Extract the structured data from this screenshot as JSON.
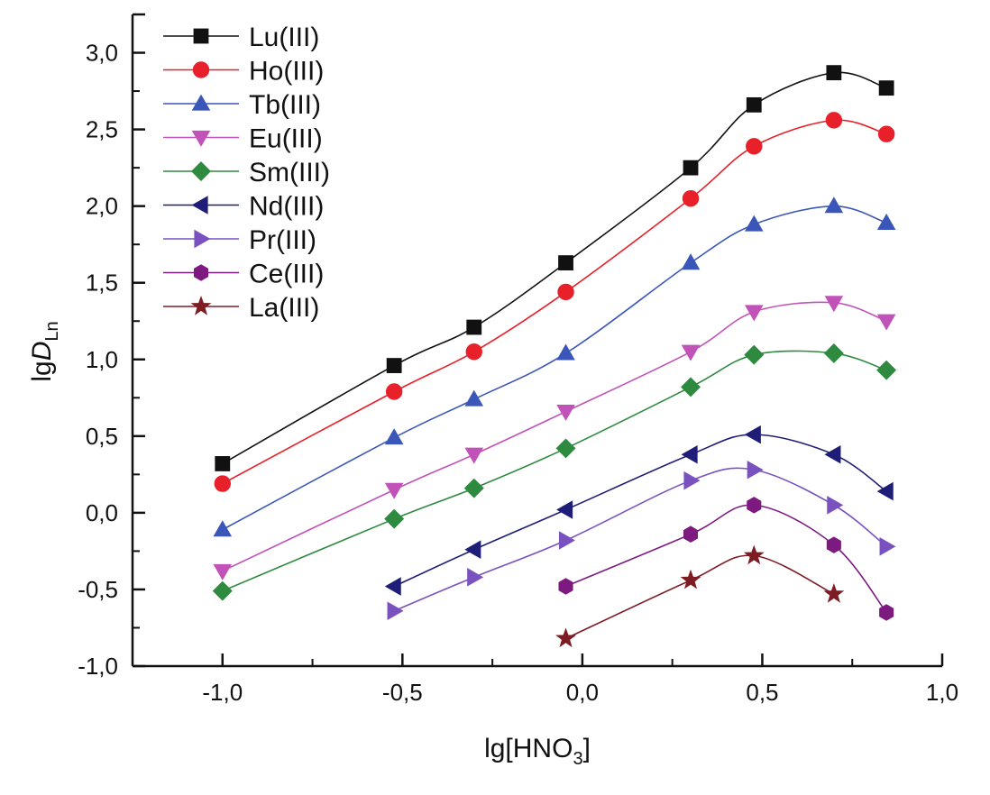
{
  "chart_data": {
    "type": "line",
    "xlabel": "lg[HNO3]",
    "xlabel_parts": {
      "main": "lg[HNO",
      "sub": "3",
      "end": "]"
    },
    "ylabel_parts": {
      "main": "lg",
      "italic": "D",
      "sub": "Ln"
    },
    "xlim": [
      -1.25,
      1.0
    ],
    "ylim": [
      -1.0,
      3.25
    ],
    "xticks": [
      -1.0,
      -0.5,
      0.0,
      0.5,
      1.0
    ],
    "xtick_labels": [
      "-1,0",
      "-0,5",
      "0,0",
      "0,5",
      "1,0"
    ],
    "yticks": [
      -1.0,
      -0.5,
      0.0,
      0.5,
      1.0,
      1.5,
      2.0,
      2.5,
      3.0
    ],
    "ytick_labels": [
      "-1,0",
      "-0,5",
      "0,0",
      "0,5",
      "1,0",
      "1,5",
      "2,0",
      "2,5",
      "3,0"
    ],
    "grid": false,
    "legend_placement": "top-left",
    "smooth_lines": true,
    "x": [
      -1.0,
      -0.523,
      -0.301,
      -0.046,
      0.301,
      0.477,
      0.699,
      0.845
    ],
    "series": [
      {
        "name": "Lu(III)",
        "color": "#111111",
        "marker": "square",
        "values": [
          0.32,
          0.96,
          1.21,
          1.63,
          2.25,
          2.66,
          2.87,
          2.77
        ]
      },
      {
        "name": "Ho(III)",
        "color": "#e8202a",
        "marker": "circle",
        "values": [
          0.19,
          0.79,
          1.05,
          1.44,
          2.05,
          2.39,
          2.56,
          2.47
        ]
      },
      {
        "name": "Tb(III)",
        "color": "#3a56b8",
        "marker": "triangle-up",
        "values": [
          -0.11,
          0.49,
          0.74,
          1.04,
          1.63,
          1.88,
          2.0,
          1.89
        ]
      },
      {
        "name": "Eu(III)",
        "color": "#c052b8",
        "marker": "triangle-down",
        "values": [
          -0.38,
          0.15,
          0.38,
          0.66,
          1.05,
          1.31,
          1.37,
          1.25
        ]
      },
      {
        "name": "Sm(III)",
        "color": "#2e8a3e",
        "marker": "diamond",
        "values": [
          -0.51,
          -0.04,
          0.16,
          0.42,
          0.82,
          1.03,
          1.04,
          0.93
        ]
      },
      {
        "name": "Nd(III)",
        "color": "#1e1e78",
        "marker": "triangle-left",
        "values": [
          null,
          -0.48,
          -0.24,
          0.02,
          0.38,
          0.51,
          0.38,
          0.14
        ]
      },
      {
        "name": "Pr(III)",
        "color": "#7a52c0",
        "marker": "triangle-right",
        "values": [
          null,
          -0.64,
          -0.42,
          -0.18,
          0.21,
          0.28,
          0.05,
          -0.22
        ]
      },
      {
        "name": "Ce(III)",
        "color": "#7c1a80",
        "marker": "hexagon",
        "values": [
          null,
          null,
          null,
          -0.48,
          -0.14,
          0.05,
          -0.21,
          -0.65
        ]
      },
      {
        "name": "La(III)",
        "color": "#7e1c24",
        "marker": "star",
        "values": [
          null,
          null,
          null,
          -0.82,
          -0.44,
          -0.28,
          -0.53,
          null
        ]
      }
    ]
  }
}
